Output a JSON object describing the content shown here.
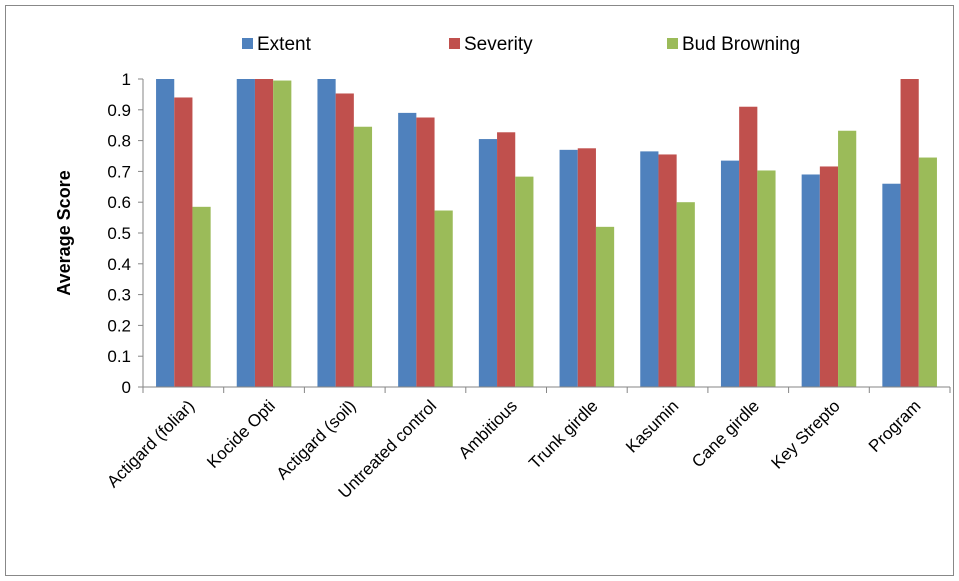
{
  "chart_data": {
    "type": "bar",
    "categories": [
      "Actigard (foliar)",
      "Kocide Opti",
      "Actigard (soil)",
      "Untreated control",
      "Ambitious",
      "Trunk girdle",
      "Kasumin",
      "Cane girdle",
      "Key Strepto",
      "Program"
    ],
    "series": [
      {
        "name": "Extent",
        "color": "#4F81BD",
        "values": [
          1.0,
          1.0,
          1.0,
          0.89,
          0.805,
          0.77,
          0.765,
          0.735,
          0.69,
          0.66
        ]
      },
      {
        "name": "Severity",
        "color": "#C0504D",
        "values": [
          0.94,
          1.0,
          0.953,
          0.875,
          0.827,
          0.775,
          0.755,
          0.91,
          0.716,
          1.0
        ]
      },
      {
        "name": "Bud Browning",
        "color": "#9BBB59",
        "values": [
          0.585,
          0.995,
          0.845,
          0.573,
          0.683,
          0.52,
          0.6,
          0.703,
          0.832,
          0.745
        ]
      }
    ],
    "ylabel": "Average Score",
    "xlabel": "",
    "ylim": [
      0,
      1
    ],
    "yticks": [
      "0",
      "0.1",
      "0.2",
      "0.3",
      "0.4",
      "0.5",
      "0.6",
      "0.7",
      "0.8",
      "0.9",
      "1"
    ],
    "grid": false,
    "legend_position": "top"
  }
}
